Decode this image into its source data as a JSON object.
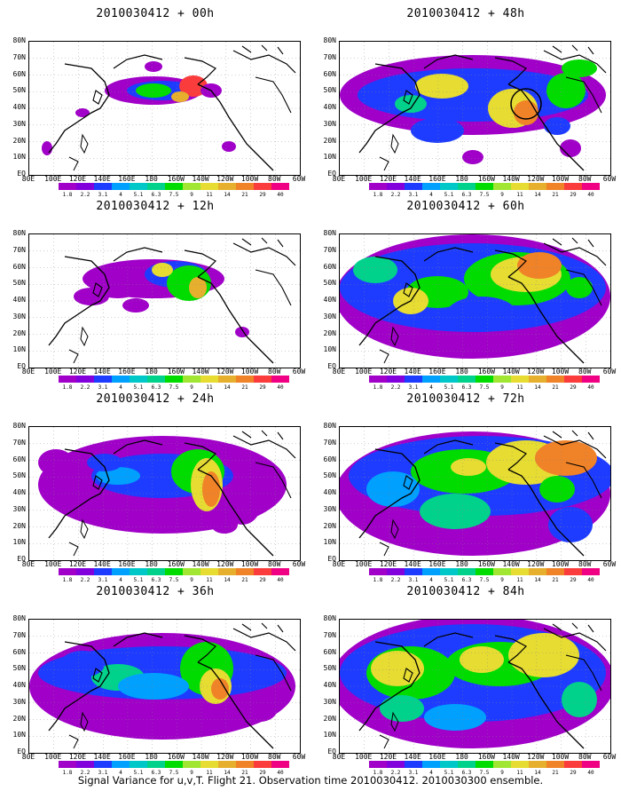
{
  "caption": "Signal Variance for u,v,T. Flight 21. Observation time 2010030412. 2010030300 ensemble.",
  "lat_labels": [
    "80N",
    "70N",
    "60N",
    "50N",
    "40N",
    "30N",
    "20N",
    "10N",
    "EQ"
  ],
  "lon_labels": [
    "80E",
    "100E",
    "120E",
    "140E",
    "160E",
    "180",
    "160W",
    "140W",
    "120W",
    "100W",
    "80W",
    "60W"
  ],
  "colorbar": {
    "labels": [
      "1.8",
      "2.2",
      "3.1",
      "4",
      "5.1",
      "6.3",
      "7.5",
      "9",
      "11",
      "14",
      "21",
      "29",
      "40"
    ],
    "colors": [
      "#a000c8",
      "#8200dc",
      "#1e3cff",
      "#00a0ff",
      "#00c8c8",
      "#00d28c",
      "#00dc00",
      "#a0e632",
      "#e6dc32",
      "#e6af2d",
      "#f08228",
      "#fa3c3c",
      "#f00082"
    ]
  },
  "panels": [
    {
      "title": "2010030412 + 00h",
      "coverage": "low",
      "hotspot": "Pacific 160E-140W"
    },
    {
      "title": "2010030412 + 48h",
      "coverage": "medium",
      "hotspot": "Alaska / Pacific"
    },
    {
      "title": "2010030412 + 12h",
      "coverage": "low",
      "hotspot": "Gulf of Alaska"
    },
    {
      "title": "2010030412 + 60h",
      "coverage": "high",
      "hotspot": "NW North America"
    },
    {
      "title": "2010030412 + 24h",
      "coverage": "medium",
      "hotspot": "Gulf of Alaska"
    },
    {
      "title": "2010030412 + 72h",
      "coverage": "high",
      "hotspot": "Canada"
    },
    {
      "title": "2010030412 + 36h",
      "coverage": "medium",
      "hotspot": "NE Pacific coast"
    },
    {
      "title": "2010030412 + 84h",
      "coverage": "high",
      "hotspot": "North America"
    }
  ]
}
